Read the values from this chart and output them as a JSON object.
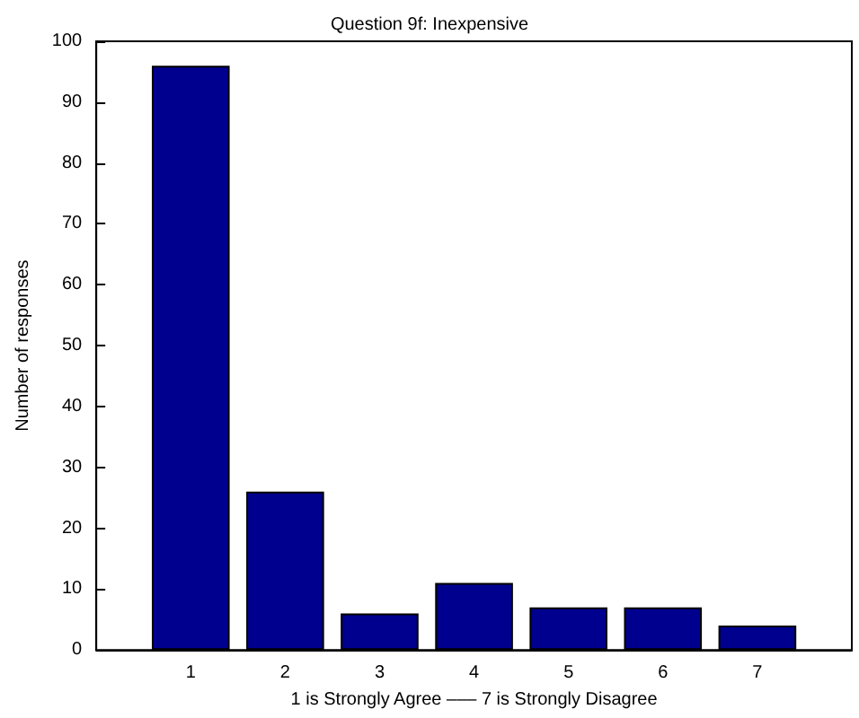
{
  "chart_data": {
    "type": "bar",
    "title": "Question 9f: Inexpensive",
    "xlabel": "1 is Strongly Agree ––– 7 is Strongly Disagree",
    "ylabel": "Number of responses",
    "x": [
      1,
      2,
      3,
      4,
      5,
      6,
      7
    ],
    "values": [
      96,
      26,
      6,
      11,
      7,
      7,
      4
    ],
    "color": "#00008f",
    "xlim": [
      0,
      8
    ],
    "xticks": [
      1,
      2,
      3,
      4,
      5,
      6,
      7
    ],
    "ylim": [
      0,
      100
    ],
    "yticks": [
      0,
      10,
      20,
      30,
      40,
      50,
      60,
      70,
      80,
      90,
      100
    ],
    "grid": false
  }
}
